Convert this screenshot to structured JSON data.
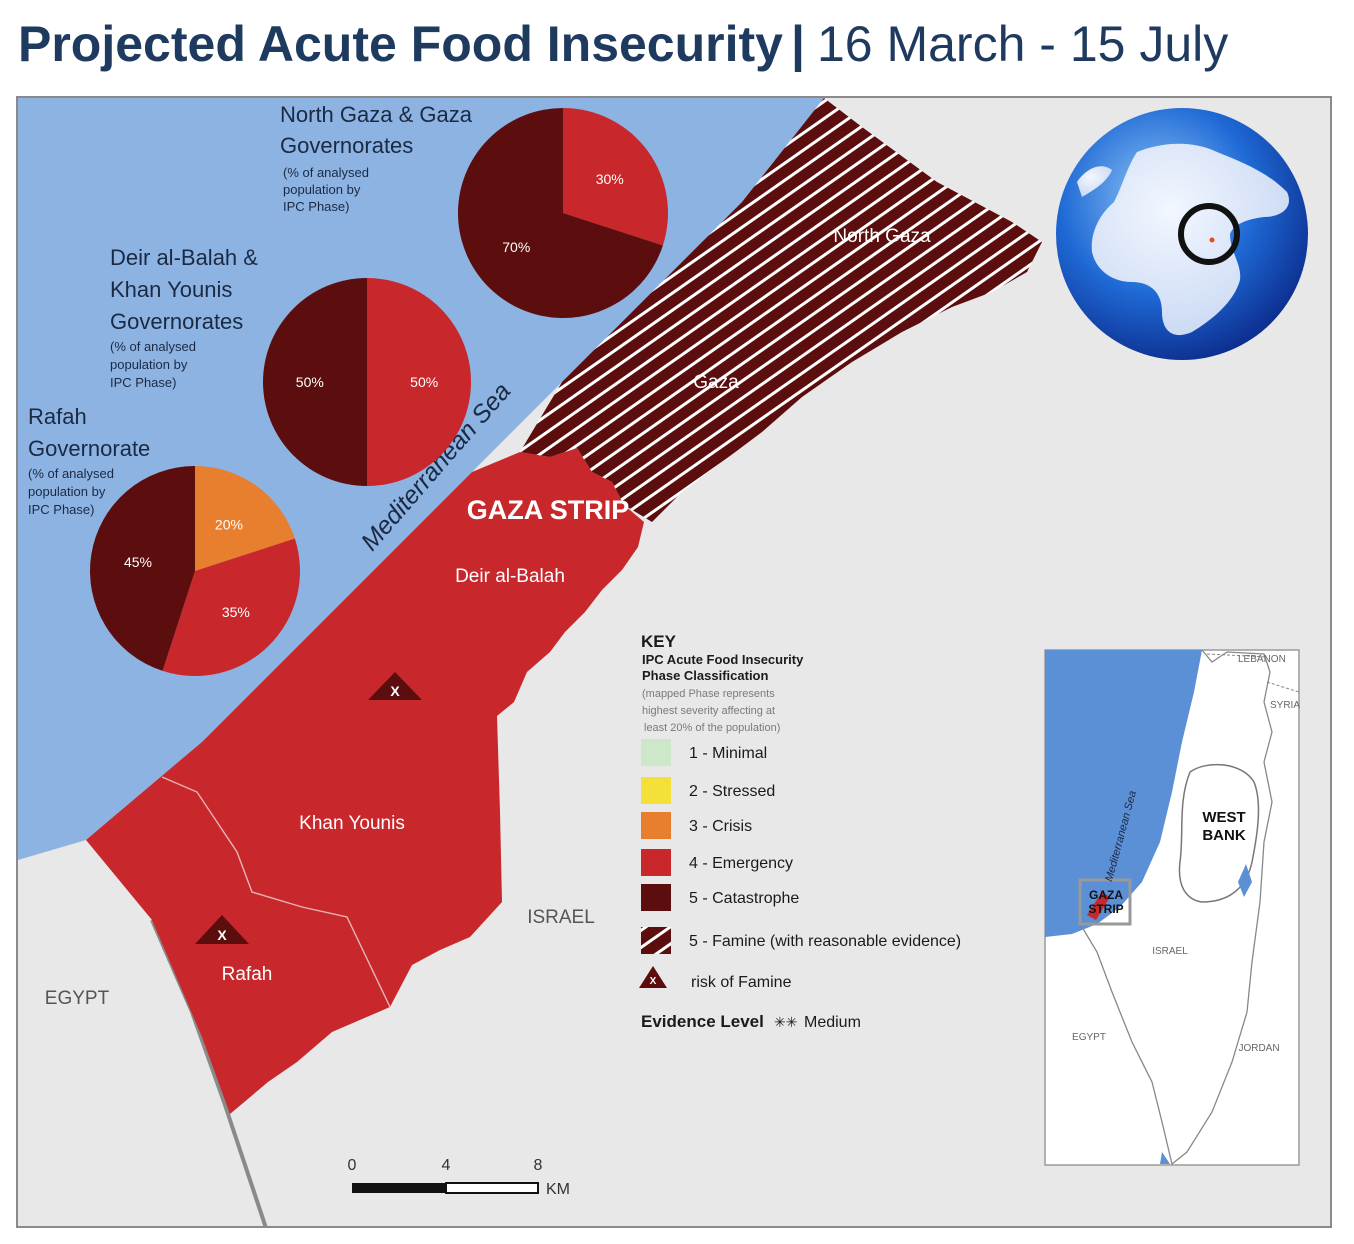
{
  "title": {
    "bold": "Projected Acute Food Insecurity",
    "separator": "|",
    "period": "16 March - 15 July"
  },
  "colors": {
    "sea": "#8db3e2",
    "land": "#e8e8e8",
    "phase1": "#cde8c8",
    "phase2": "#f5e03a",
    "phase3": "#e77f2e",
    "phase4": "#c8282b",
    "phase5": "#5c0d0d",
    "title": "#1f3a5f"
  },
  "map": {
    "sea_label": "Mediterranean Sea",
    "strip_label": "GAZA STRIP",
    "areas": {
      "north_gaza": "North Gaza",
      "gaza": "Gaza",
      "deir": "Deir al-Balah",
      "khan": "Khan Younis",
      "rafah": "Rafah"
    },
    "countries": {
      "israel": "ISRAEL",
      "egypt": "EGYPT"
    },
    "risk_marker": "X"
  },
  "pies": [
    {
      "title_lines": [
        "North Gaza & Gaza",
        "Governorates"
      ],
      "note_lines": [
        "(% of analysed",
        "population by",
        "IPC Phase)"
      ],
      "slices": [
        {
          "phase": 4,
          "value": 30,
          "label": "30%"
        },
        {
          "phase": 5,
          "value": 70,
          "label": "70%"
        }
      ]
    },
    {
      "title_lines": [
        "Deir al-Balah &",
        "Khan Younis",
        "Governorates"
      ],
      "note_lines": [
        "(% of analysed",
        "population by",
        "IPC Phase)"
      ],
      "slices": [
        {
          "phase": 4,
          "value": 50,
          "label": "50%"
        },
        {
          "phase": 5,
          "value": 50,
          "label": "50%"
        }
      ]
    },
    {
      "title_lines": [
        "Rafah",
        "Governorate"
      ],
      "note_lines": [
        "(% of analysed",
        "population by",
        "IPC Phase)"
      ],
      "slices": [
        {
          "phase": 3,
          "value": 20,
          "label": "20%"
        },
        {
          "phase": 4,
          "value": 35,
          "label": "35%"
        },
        {
          "phase": 5,
          "value": 45,
          "label": "45%"
        }
      ]
    }
  ],
  "key": {
    "title": "KEY",
    "subtitle_lines": [
      "IPC Acute Food Insecurity",
      "Phase Classification"
    ],
    "note_lines": [
      "(mapped Phase represents",
      "highest severity affecting at",
      "least 20% of the population)"
    ],
    "items": [
      {
        "label": "1 - Minimal",
        "color": "#cde8c8",
        "pattern": "solid"
      },
      {
        "label": "2 - Stressed",
        "color": "#f5e03a",
        "pattern": "solid"
      },
      {
        "label": "3 - Crisis",
        "color": "#e77f2e",
        "pattern": "solid"
      },
      {
        "label": "4 - Emergency",
        "color": "#c8282b",
        "pattern": "solid"
      },
      {
        "label": "5 - Catastrophe",
        "color": "#5c0d0d",
        "pattern": "solid"
      },
      {
        "label": "5 -  Famine (with reasonable evidence)",
        "color": "#5c0d0d",
        "pattern": "hatched"
      }
    ],
    "risk_label": "risk of Famine",
    "evidence_label": "Evidence Level",
    "evidence_stars": "✳✳",
    "evidence_value": "Medium"
  },
  "scale": {
    "ticks": [
      "0",
      "4",
      "8"
    ],
    "unit": "KM"
  },
  "inset": {
    "sea": "Mediterranean Sea",
    "labels": {
      "lebanon": "LEBANON",
      "syria": "SYRIA",
      "west_bank_1": "WEST",
      "west_bank_2": "BANK",
      "gaza_1": "GAZA",
      "gaza_2": "STRIP",
      "israel": "ISRAEL",
      "egypt": "EGYPT",
      "jordan": "JORDAN"
    }
  },
  "globe": {
    "icon": "globe-icon"
  }
}
